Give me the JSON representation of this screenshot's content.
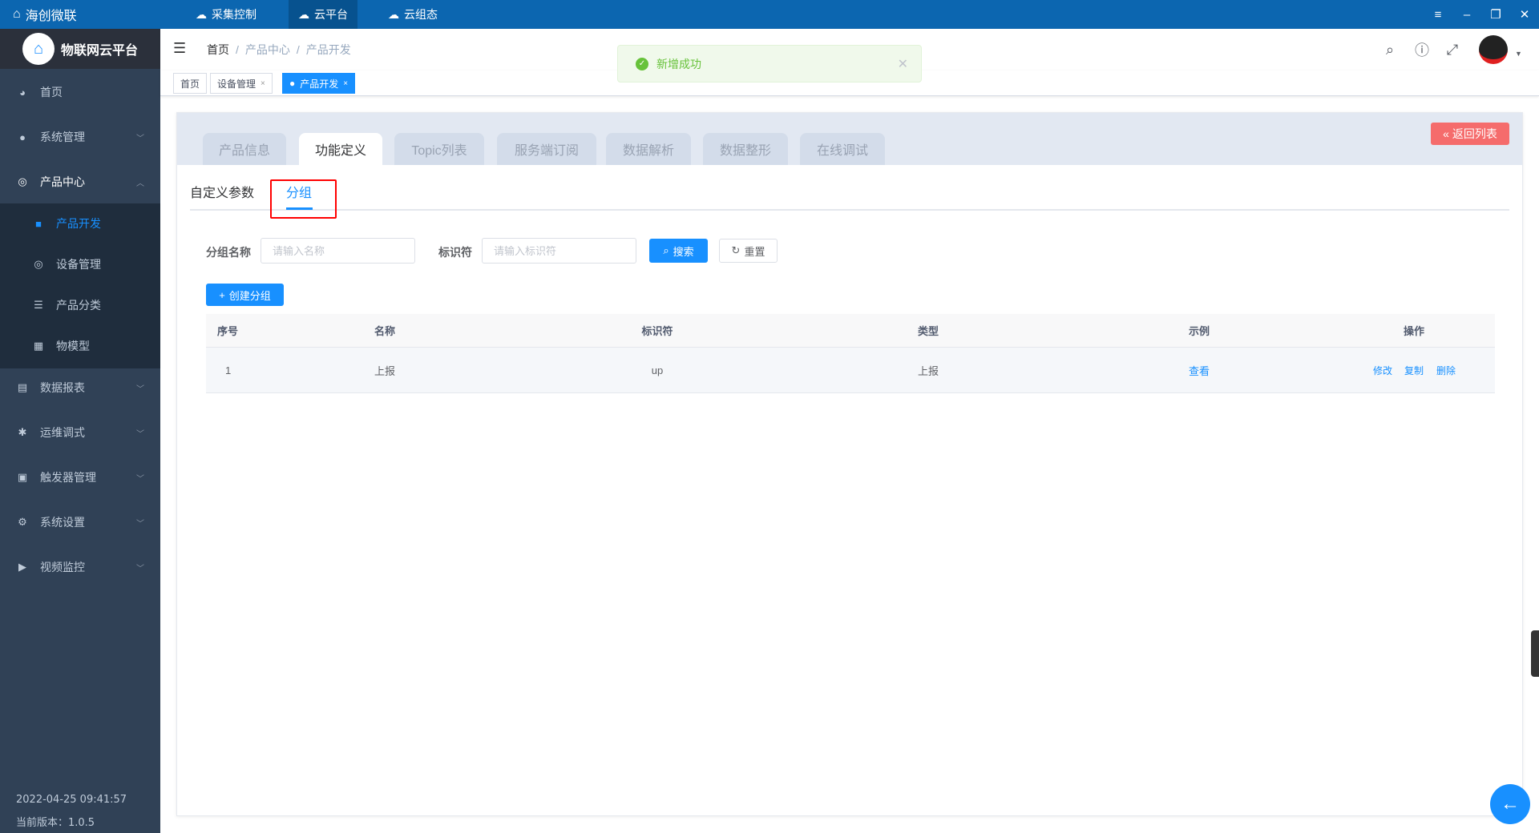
{
  "topbar": {
    "brand": "海创微联",
    "apps": [
      {
        "label": "采集控制",
        "icon": "cloud-sync-icon"
      },
      {
        "label": "云平台",
        "icon": "cloud-platform-icon",
        "active": true
      },
      {
        "label": "云组态",
        "icon": "cloud-config-icon"
      }
    ],
    "window": {
      "menu": "≡",
      "minimize": "–",
      "restore": "❐",
      "close": "✕"
    }
  },
  "sidebar": {
    "logo_text": "物联网云平台",
    "items": [
      {
        "label": "首页",
        "icon": "dashboard-icon"
      },
      {
        "label": "系统管理",
        "icon": "user-icon"
      },
      {
        "label": "产品中心",
        "icon": "product-icon",
        "expanded": true
      },
      {
        "label": "数据报表",
        "icon": "report-icon"
      },
      {
        "label": "运维调式",
        "icon": "bug-icon"
      },
      {
        "label": "触发器管理",
        "icon": "monitor-icon"
      },
      {
        "label": "系统设置",
        "icon": "gear-icon"
      },
      {
        "label": "视频监控",
        "icon": "camera-icon"
      }
    ],
    "subitems": [
      {
        "label": "产品开发",
        "active": true
      },
      {
        "label": "设备管理"
      },
      {
        "label": "产品分类"
      },
      {
        "label": "物模型"
      }
    ],
    "datetime": "2022-04-25 09:41:57",
    "version": "当前版本：1.0.5"
  },
  "breadcrumb": [
    "首页",
    "产品中心",
    "产品开发"
  ],
  "tags": [
    {
      "label": "首页"
    },
    {
      "label": "设备管理",
      "closable": true
    },
    {
      "label": "产品开发",
      "closable": true,
      "active": true
    }
  ],
  "toast": {
    "message": "新增成功",
    "type": "success"
  },
  "panel": {
    "tabs": [
      "产品信息",
      "功能定义",
      "Topic列表",
      "服务端订阅",
      "数据解析",
      "数据整形",
      "在线调试"
    ],
    "active_tab": "功能定义",
    "back_label": "返回列表",
    "subtabs": [
      "自定义参数",
      "分组"
    ],
    "active_subtab": "分组",
    "search": {
      "name_label": "分组名称",
      "name_placeholder": "请输入名称",
      "id_label": "标识符",
      "id_placeholder": "请输入标识符",
      "search_label": "搜索",
      "reset_label": "重置"
    },
    "create_label": "创建分组",
    "table": {
      "columns": [
        "序号",
        "名称",
        "标识符",
        "类型",
        "示例",
        "操作"
      ],
      "rows": [
        {
          "index": "1",
          "name": "上报",
          "identifier": "up",
          "type": "上报",
          "example": "查看",
          "actions": [
            "修改",
            "复制",
            "删除"
          ]
        }
      ]
    }
  },
  "colors": {
    "accent": "#1890ff",
    "topbar": "#0c66b0",
    "sidebar": "#304156",
    "danger": "#f56c6c",
    "success": "#67c23a"
  }
}
